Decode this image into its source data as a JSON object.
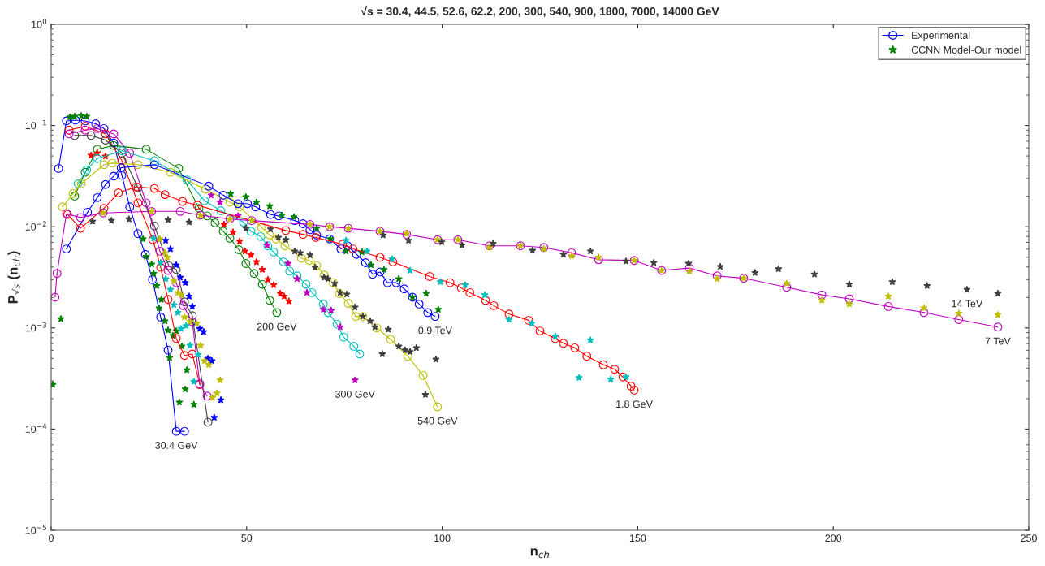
{
  "chart_data": {
    "type": "line",
    "title": "√s = 30.4, 44.5, 52.6, 62.2, 200, 300, 540, 900, 1800, 7000, 14000 GeV",
    "xlabel": "n$_{ch}$",
    "ylabel": "P$_{√s}$ (n$_{ch}$)",
    "log": "y",
    "xlim": [
      0,
      250
    ],
    "xticks": [
      0,
      50,
      100,
      150,
      200,
      250
    ],
    "ylim": [
      1e-05,
      1
    ],
    "yticks": [
      {
        "value": 1e-05,
        "label": "10$^{−5}$"
      },
      {
        "value": 0.0001,
        "label": "10$^{−4}$"
      },
      {
        "value": 0.001,
        "label": "10$^{−3}$"
      },
      {
        "value": 0.01,
        "label": "10$^{−2}$"
      },
      {
        "value": 0.1,
        "label": "10$^{−1}$"
      },
      {
        "value": 1,
        "label": "10$^{0}$"
      }
    ],
    "legend": "top right",
    "grid": false,
    "series": [
      {
        "name": "Experimental",
        "type": "line",
        "marker": "circle",
        "color": "#0000ff",
        "x": [
          1.9,
          3.9,
          6.2,
          8.7,
          11.4,
          13.5,
          16.0,
          18.1,
          20.1,
          22.2,
          24.1,
          25.9,
          28.0,
          29.9,
          32.0,
          34.1
        ],
        "values": [
          0.0377,
          0.111,
          0.113,
          0.111,
          0.104,
          0.0933,
          0.067,
          0.0322,
          0.0157,
          0.00855,
          0.00533,
          0.003,
          0.00128,
          0.000603,
          9.5e-05,
          9.5e-05
        ]
      },
      {
        "name": "CCNN Model-Our model",
        "type": "scatter",
        "marker": "star",
        "color": "#008000",
        "x": [
          0.4,
          2.5,
          4.8,
          6.0,
          7.7,
          9.1,
          23.5,
          24.3,
          25.7,
          26.2,
          27.0,
          27.6,
          28.2,
          29.1,
          29.9,
          30.3,
          31.1,
          32.0,
          32.8,
          33.4,
          34.3,
          34.7,
          36.5
        ],
        "values": [
          0.000275,
          0.00123,
          0.121,
          0.123,
          0.125,
          0.123,
          0.00757,
          0.00507,
          0.00425,
          0.00345,
          0.00261,
          0.00157,
          0.00191,
          0.00117,
          0.000948,
          0.000507,
          0.000839,
          0.000933,
          0.000184,
          0.000658,
          0.000248,
          0.000383,
          0.000175
        ]
      },
      {
        "type": "line",
        "marker": "circle",
        "color": "#ff0000",
        "x": [
          4.6,
          8.7,
          13.9,
          18.1,
          22.2,
          26.0,
          28.0,
          29.9,
          32.0,
          34.1,
          36.1,
          38.0
        ],
        "values": [
          0.0901,
          0.0983,
          0.0826,
          0.0449,
          0.0172,
          0.00743,
          0.00397,
          0.00191,
          0.000783,
          0.000534,
          0.000552,
          0.000275
        ]
      },
      {
        "type": "line",
        "marker": "circle",
        "color": "#3f3f3f",
        "x": [
          6.0,
          10.2,
          13.9,
          18.1,
          22.2,
          26.4,
          30.1,
          32.0,
          34.1,
          36.1,
          40.1
        ],
        "values": [
          0.0797,
          0.0797,
          0.0718,
          0.0533,
          0.0243,
          0.0102,
          0.00411,
          0.00377,
          0.00181,
          0.00132,
          0.000117
        ]
      },
      {
        "type": "line",
        "marker": "circle",
        "color": "#bf00bf",
        "x": [
          4.6,
          8.7,
          11.8,
          16.0,
          20.1,
          24.3,
          27.8,
          29.9,
          32.0,
          33.8,
          36.1,
          38.0,
          39.9
        ],
        "values": [
          0.0826,
          0.0901,
          0.0933,
          0.0826,
          0.0533,
          0.0172,
          0.00573,
          0.0037,
          0.0028,
          0.00166,
          0.00115,
          0.00028,
          0.000212
        ]
      },
      {
        "type": "scatter",
        "marker": "star",
        "color": "#0000ff",
        "x": [
          29.3,
          30.5,
          32.0,
          33.0,
          34.3,
          35.3,
          36.1,
          37.0,
          38.0,
          39.0,
          40.1,
          41.1,
          41.7,
          43.4
        ],
        "values": [
          0.00731,
          0.00603,
          0.00418,
          0.00316,
          0.0028,
          0.00205,
          0.00163,
          0.00111,
          0.000982,
          0.000916,
          0.000498,
          0.000472,
          0.00013,
          0.000194
        ]
      },
      {
        "type": "scatter",
        "marker": "star",
        "color": "#bfbf00",
        "x": [
          27.8,
          29.1,
          29.7,
          31.4,
          32.4,
          33.2,
          34.1,
          35.5,
          37.2,
          38.2,
          39.2,
          40.3,
          41.3,
          42.4,
          43.2
        ],
        "values": [
          0.00757,
          0.00552,
          0.00498,
          0.0029,
          0.00223,
          0.00212,
          0.00128,
          0.00115,
          0.00111,
          0.00067,
          0.000472,
          0.000433,
          0.000205,
          0.000227,
          0.000305
        ]
      },
      {
        "type": "scatter",
        "marker": "star",
        "color": "#00bfbf",
        "x": [
          26.2,
          28.0,
          29.3,
          30.5,
          31.4,
          32.4,
          33.2,
          34.5,
          35.5,
          36.5,
          37.6
        ],
        "values": [
          0.00769,
          0.00441,
          0.00305,
          0.00239,
          0.00169,
          0.00142,
          0.000982,
          0.00105,
          0.00067,
          0.000295,
          0.000543
        ]
      },
      {
        "type": "line",
        "marker": "circle",
        "color": "#008000",
        "x": [
          6.0,
          8.7,
          11.8,
          16.0,
          24.3,
          32.6,
          37.8,
          39.9,
          41.9,
          44.0,
          45.7,
          48.0,
          49.8,
          51.9,
          54.0,
          55.9,
          57.7
        ],
        "values": [
          0.0201,
          0.0345,
          0.0582,
          0.0635,
          0.0582,
          0.0377,
          0.0152,
          0.0128,
          0.0109,
          0.00901,
          0.00769,
          0.00593,
          0.00433,
          0.00345,
          0.0027,
          0.00187,
          0.00142
        ]
      },
      {
        "type": "scatter",
        "marker": "star",
        "color": "#ff0000",
        "x": [
          10.2,
          11.8,
          13.9,
          44.2,
          46.5,
          48.2,
          49.6,
          51.1,
          52.5,
          54.0,
          55.4,
          56.9,
          58.6,
          59.6,
          60.8
        ],
        "values": [
          0.0507,
          0.0533,
          0.0498,
          0.01054,
          0.00885,
          0.00718,
          0.00573,
          0.00525,
          0.00449,
          0.00377,
          0.003,
          0.00266,
          0.00219,
          0.00205,
          0.00184
        ]
      },
      {
        "type": "line",
        "marker": "circle",
        "color": "#00bfbf",
        "x": [
          6.9,
          9.1,
          11.8,
          18.1,
          26.4,
          34.7,
          39.2,
          43.4,
          49.2,
          51.1,
          53.6,
          55.4,
          56.9,
          59.4,
          61.0,
          62.9,
          65.2,
          66.7,
          69.6,
          70.8,
          73.1,
          74.8,
          77.4,
          78.9
        ],
        "values": [
          0.0266,
          0.0364,
          0.0472,
          0.0562,
          0.0449,
          0.029,
          0.0181,
          0.0144,
          0.0111,
          0.00901,
          0.00798,
          0.00647,
          0.00562,
          0.00449,
          0.00364,
          0.00327,
          0.0027,
          0.00223,
          0.00172,
          0.00142,
          0.00109,
          0.000811,
          0.000658,
          0.000552
        ]
      },
      {
        "type": "scatter",
        "marker": "star",
        "color": "#bf00bf",
        "x": [
          40.9,
          43.2,
          47.8,
          55.2,
          60.6,
          62.9,
          65.4,
          69.6,
          71.6,
          73.9,
          77.7
        ],
        "values": [
          0.0205,
          0.0175,
          0.0128,
          0.00658,
          0.00433,
          0.00305,
          0.00223,
          0.00152,
          0.00149,
          0.00102,
          0.000305
        ]
      },
      {
        "type": "line",
        "marker": "circle",
        "color": "#bfbf00",
        "x": [
          2.9,
          5.6,
          7.7,
          13.5,
          15.6,
          22.2,
          30.5,
          39.5,
          45.7,
          48.2,
          53.8,
          55.9,
          57.5,
          59.8,
          64.0,
          66.0,
          67.9,
          69.8,
          72.1,
          73.7,
          76.0,
          77.9,
          79.7,
          83.3,
          86.8,
          91.2,
          95.1,
          98.8
        ],
        "values": [
          0.0157,
          0.0212,
          0.0266,
          0.0411,
          0.0425,
          0.0411,
          0.0345,
          0.0235,
          0.0175,
          0.0157,
          0.00982,
          0.00826,
          0.00757,
          0.00647,
          0.00489,
          0.00464,
          0.00411,
          0.00333,
          0.0028,
          0.00219,
          0.00175,
          0.0013,
          0.0013,
          0.001,
          0.000769,
          0.000525,
          0.000339,
          0.000166
        ]
      },
      {
        "type": "scatter",
        "marker": "star",
        "color": "#3f3f3f",
        "x": [
          49.8,
          56.1,
          58.1,
          60.0,
          62.3,
          63.7,
          66.2,
          67.5,
          69.8,
          70.8,
          72.5,
          73.9,
          75.6,
          77.7,
          79.7,
          81.6,
          82.8,
          84.7,
          86.2,
          88.9,
          90.5,
          91.8,
          93.4,
          95.7,
          98.4
        ],
        "values": [
          0.00966,
          0.00948,
          0.00783,
          0.00743,
          0.00573,
          0.00552,
          0.00525,
          0.00397,
          0.00316,
          0.00305,
          0.00275,
          0.00223,
          0.00215,
          0.0016,
          0.0013,
          0.00117,
          0.00102,
          0.000552,
          0.000966,
          0.000658,
          0.000603,
          0.000582,
          0.000635,
          0.000219,
          0.000489
        ]
      },
      {
        "type": "line",
        "marker": "circle",
        "color": "#0000ff",
        "x": [
          3.9,
          9.3,
          11.8,
          13.9,
          16.0,
          17.9,
          26.4,
          40.3,
          44.0,
          47.8,
          50.2,
          52.3,
          56.1,
          58.2,
          62.3,
          64.4,
          66.2,
          67.9,
          71.2,
          74.1,
          75.8,
          78.1,
          80.4,
          82.2,
          84.1,
          86.0,
          88.2,
          90.3,
          92.4,
          94.1,
          96.3,
          98.2
        ],
        "values": [
          0.00603,
          0.0139,
          0.0194,
          0.0261,
          0.0316,
          0.0383,
          0.041,
          0.0252,
          0.0205,
          0.0169,
          0.0169,
          0.0157,
          0.0132,
          0.0128,
          0.0115,
          0.0107,
          0.00933,
          0.00826,
          0.00757,
          0.00603,
          0.00647,
          0.00533,
          0.00441,
          0.00339,
          0.00357,
          0.0028,
          0.0028,
          0.00243,
          0.00201,
          0.00172,
          0.00142,
          0.0013
        ]
      },
      {
        "type": "scatter",
        "marker": "star",
        "color": "#008000",
        "x": [
          45.9,
          49.8,
          52.5,
          55.9,
          59.0,
          62.1,
          67.9,
          71.4,
          75.4,
          79.5,
          81.8,
          85.1,
          88.9,
          92.4,
          95.9,
          99.0
        ],
        "values": [
          0.0212,
          0.0197,
          0.0175,
          0.016,
          0.013,
          0.0125,
          0.00966,
          0.00757,
          0.00573,
          0.00562,
          0.00418,
          0.00377,
          0.00305,
          0.00201,
          0.00219,
          0.00152
        ]
      },
      {
        "type": "line",
        "marker": "circle",
        "color": "#ff0000",
        "x": [
          4.2,
          7.5,
          13.5,
          17.2,
          21.8,
          26.4,
          29.1,
          33.6,
          37.4,
          60.0,
          64.4,
          67.7,
          74.5,
          77.2,
          84.1,
          87.4,
          96.8,
          102.0,
          104.9,
          107.1,
          111.1,
          113.2,
          117.1,
          122.1,
          125.0,
          128.9,
          131.0,
          133.9,
          137.0,
          141.2,
          144.1,
          146.2,
          148.3,
          149.1
        ],
        "values": [
          0.0132,
          0.00966,
          0.0152,
          0.0216,
          0.0248,
          0.0239,
          0.0208,
          0.0178,
          0.0163,
          0.00917,
          0.0084,
          0.00783,
          0.0067,
          0.00603,
          0.00498,
          0.00449,
          0.00322,
          0.0028,
          0.00248,
          0.00223,
          0.00187,
          0.00166,
          0.00137,
          0.00119,
          0.000933,
          0.000783,
          0.000705,
          0.000635,
          0.000525,
          0.000433,
          0.00039,
          0.000327,
          0.000266,
          0.000243
        ]
      },
      {
        "type": "scatter",
        "marker": "star",
        "color": "#00bfbf",
        "x": [
          75.4,
          80.8,
          87.2,
          91.8,
          99.5,
          105.9,
          110.9,
          117.1,
          122.9,
          128.9,
          135.0,
          137.9,
          143.1,
          147.0
        ],
        "values": [
          0.00731,
          0.00573,
          0.00481,
          0.0037,
          0.00285,
          0.00266,
          0.00212,
          0.00121,
          0.00111,
          0.000826,
          0.000322,
          0.000757,
          0.000311,
          0.000327
        ]
      },
      {
        "type": "line",
        "marker": "circle",
        "color": "#bf00bf",
        "x": [
          1.0,
          1.5,
          3.9,
          7.5,
          13.3,
          25.7,
          33.0,
          38.2,
          45.7,
          51.3,
          66.2,
          71.2,
          76.0,
          84.1,
          90.9,
          98.8,
          104.0,
          112.1,
          120.0,
          126.0,
          133.1,
          140.0,
          149.1,
          156.1,
          163.2,
          170.3,
          177.1,
          188.1,
          197.1,
          204.1,
          214.1,
          223.2,
          232.1,
          242.1
        ],
        "values": [
          0.00201,
          0.00345,
          0.01345,
          0.01233,
          0.01368,
          0.01418,
          0.01418,
          0.013,
          0.0119,
          0.0115,
          0.01054,
          0.01,
          0.00966,
          0.00901,
          0.0084,
          0.00743,
          0.00743,
          0.00647,
          0.00647,
          0.00624,
          0.00552,
          0.00472,
          0.00464,
          0.0037,
          0.0039,
          0.00327,
          0.0031,
          0.00252,
          0.00212,
          0.00194,
          0.00163,
          0.00142,
          0.00121,
          0.00102
        ]
      },
      {
        "type": "scatter",
        "marker": "star",
        "color": "#bfbf00",
        "x": [
          13.3,
          25.7,
          38.2,
          45.7,
          51.3,
          66.2,
          71.2,
          76.0,
          84.1,
          90.9,
          98.8,
          104.0,
          112.1,
          120.0,
          126.0,
          133.1,
          140.0,
          149.1,
          156.1,
          163.2,
          170.3,
          177.1,
          188.1,
          197.1,
          204.1,
          214.1,
          223.2,
          232.1,
          242.1
        ],
        "values": [
          0.01368,
          0.0142,
          0.013,
          0.0119,
          0.0115,
          0.01054,
          0.01,
          0.00966,
          0.009,
          0.00855,
          0.00743,
          0.00743,
          0.00624,
          0.00647,
          0.00603,
          0.00515,
          0.00498,
          0.00464,
          0.0037,
          0.00364,
          0.00305,
          0.0031,
          0.00275,
          0.00187,
          0.00172,
          0.00205,
          0.00157,
          0.00139,
          0.00135
        ]
      },
      {
        "type": "scatter",
        "marker": "star",
        "color": "#3f3f3f",
        "x": [
          10.6,
          15.4,
          19.9,
          29.9,
          35.3,
          84.9,
          91.4,
          99.9,
          105.1,
          113.0,
          123.1,
          131.0,
          137.9,
          147.0,
          154.1,
          163.0,
          171.1,
          180.0,
          186.0,
          195.2,
          204.1,
          215.1,
          224.0,
          234.2,
          242.1
        ],
        "values": [
          0.01129,
          0.0115,
          0.0119,
          0.0117,
          0.0111,
          0.00826,
          0.00731,
          0.00705,
          0.00658,
          0.00681,
          0.00582,
          0.00533,
          0.00573,
          0.00456,
          0.00441,
          0.00433,
          0.00403,
          0.00351,
          0.00383,
          0.00339,
          0.0027,
          0.00285,
          0.00261,
          0.00239,
          0.00219
        ]
      }
    ],
    "annotations": [
      {
        "text": "30.4 GeV",
        "x": 32.0,
        "y": 9.5e-05
      },
      {
        "text": "200 GeV",
        "x": 57.7,
        "y": 0.00142
      },
      {
        "text": "300 GeV",
        "x": 77.7,
        "y": 0.000305
      },
      {
        "text": "0.9 TeV",
        "x": 98.2,
        "y": 0.0013
      },
      {
        "text": "540 GeV",
        "x": 98.8,
        "y": 0.000166
      },
      {
        "text": "1.8 GeV",
        "x": 149.1,
        "y": 0.000243
      },
      {
        "text": "7 TeV",
        "x": 242.1,
        "y": 0.00102
      },
      {
        "text": "14 TeV",
        "x": 234.2,
        "y": 0.00239
      }
    ]
  }
}
